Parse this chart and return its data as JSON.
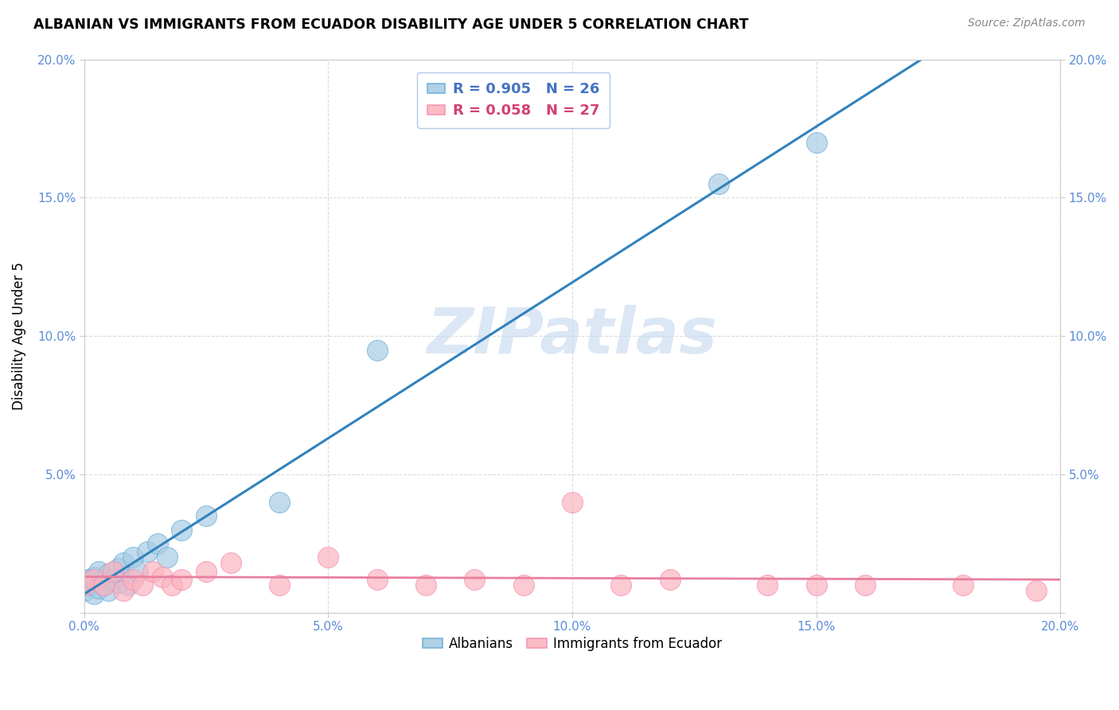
{
  "title": "ALBANIAN VS IMMIGRANTS FROM ECUADOR DISABILITY AGE UNDER 5 CORRELATION CHART",
  "source": "Source: ZipAtlas.com",
  "ylabel": "Disability Age Under 5",
  "xlim": [
    0.0,
    0.2
  ],
  "ylim": [
    0.0,
    0.2
  ],
  "xtick_vals": [
    0.0,
    0.05,
    0.1,
    0.15,
    0.2
  ],
  "ytick_vals": [
    0.0,
    0.05,
    0.1,
    0.15,
    0.2
  ],
  "albanians_color": "#a8cce4",
  "albanians_edge_color": "#6baed6",
  "ecuador_color": "#fbb4c0",
  "ecuador_edge_color": "#f48fb1",
  "R_albanian": 0.905,
  "N_albanian": 26,
  "R_ecuador": 0.058,
  "N_ecuador": 27,
  "albanian_line_color": "#3182bd",
  "ecuador_line_color": "#e87fa0",
  "tick_label_color": "#5b8dd9",
  "watermark_color": "#c5d8ef",
  "alb_x": [
    0.0,
    0.001,
    0.001,
    0.002,
    0.002,
    0.003,
    0.003,
    0.004,
    0.005,
    0.005,
    0.006,
    0.007,
    0.007,
    0.008,
    0.009,
    0.01,
    0.011,
    0.013,
    0.015,
    0.017,
    0.02,
    0.025,
    0.04,
    0.06,
    0.13,
    0.15
  ],
  "alb_y": [
    0.008,
    0.01,
    0.012,
    0.007,
    0.013,
    0.009,
    0.015,
    0.01,
    0.008,
    0.014,
    0.012,
    0.016,
    0.011,
    0.018,
    0.01,
    0.02,
    0.015,
    0.022,
    0.025,
    0.02,
    0.03,
    0.035,
    0.04,
    0.095,
    0.155,
    0.17
  ],
  "ecu_x": [
    0.0,
    0.002,
    0.004,
    0.006,
    0.008,
    0.01,
    0.012,
    0.014,
    0.016,
    0.018,
    0.02,
    0.025,
    0.03,
    0.04,
    0.05,
    0.06,
    0.07,
    0.08,
    0.09,
    0.1,
    0.11,
    0.12,
    0.14,
    0.15,
    0.16,
    0.18,
    0.195
  ],
  "ecu_y": [
    0.01,
    0.012,
    0.01,
    0.015,
    0.008,
    0.012,
    0.01,
    0.015,
    0.013,
    0.01,
    0.012,
    0.015,
    0.018,
    0.01,
    0.02,
    0.012,
    0.01,
    0.012,
    0.01,
    0.04,
    0.01,
    0.012,
    0.01,
    0.01,
    0.01,
    0.01,
    0.008
  ]
}
